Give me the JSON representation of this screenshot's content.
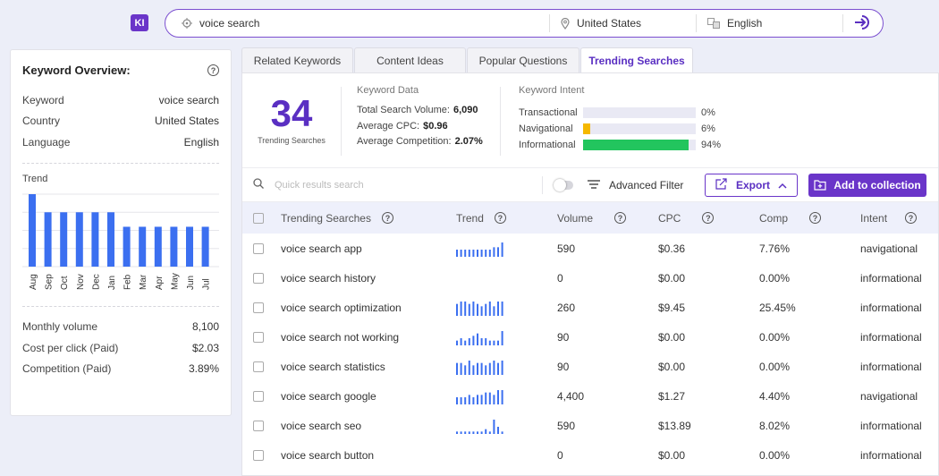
{
  "app": {
    "logo_text": "KI"
  },
  "search": {
    "keyword": "voice search",
    "country": "United States",
    "language": "English",
    "icons": {
      "keyword": "target-icon",
      "country": "location-pin-icon",
      "language": "translate-icon",
      "go": "login-arrow-icon"
    }
  },
  "overview": {
    "title": "Keyword Overview:",
    "rows": [
      {
        "label": "Keyword",
        "value": "voice search"
      },
      {
        "label": "Country",
        "value": "United States"
      },
      {
        "label": "Language",
        "value": "English"
      }
    ],
    "trend_title": "Trend",
    "trend": {
      "months": [
        "Aug",
        "Sep",
        "Oct",
        "Nov",
        "Dec",
        "Jan",
        "Feb",
        "Mar",
        "Apr",
        "May",
        "Jun",
        "Jul"
      ],
      "values": [
        1.0,
        0.75,
        0.75,
        0.75,
        0.75,
        0.75,
        0.55,
        0.55,
        0.55,
        0.55,
        0.55,
        0.55
      ],
      "bar_color": "#3b6ff0"
    },
    "stats": [
      {
        "label": "Monthly volume",
        "value": "8,100"
      },
      {
        "label": "Cost per click (Paid)",
        "value": "$2.03"
      },
      {
        "label": "Competition (Paid)",
        "value": "3.89%"
      }
    ]
  },
  "tabs": [
    {
      "label": "Related Keywords",
      "active": false
    },
    {
      "label": "Content Ideas",
      "active": false
    },
    {
      "label": "Popular Questions",
      "active": false
    },
    {
      "label": "Trending Searches",
      "active": true
    }
  ],
  "summary": {
    "count": "34",
    "count_label": "Trending Searches",
    "keyword_data": {
      "title": "Keyword Data",
      "rows": [
        {
          "label": "Total Search Volume:",
          "value": "6,090"
        },
        {
          "label": "Average CPC:",
          "value": "$0.96"
        },
        {
          "label": "Average Competition:",
          "value": "2.07%"
        }
      ]
    },
    "keyword_intent": {
      "title": "Keyword Intent",
      "rows": [
        {
          "label": "Transactional",
          "value": "0%",
          "fraction": 0.0,
          "color": "#b0b0ff"
        },
        {
          "label": "Navigational",
          "value": "6%",
          "fraction": 0.06,
          "color": "#f5b800"
        },
        {
          "label": "Informational",
          "value": "94%",
          "fraction": 0.94,
          "color": "#22c55e"
        }
      ]
    }
  },
  "toolbar": {
    "search_placeholder": "Quick results search",
    "advanced_filter": "Advanced Filter",
    "export": "Export",
    "add_to_collection": "Add to collection"
  },
  "table": {
    "headers": [
      "Trending Searches",
      "Trend",
      "Volume",
      "CPC",
      "Comp",
      "Intent"
    ],
    "rows": [
      {
        "keyword": "voice search app",
        "trend": [
          3,
          3,
          3,
          3,
          3,
          3,
          3,
          3,
          3,
          4,
          4,
          6
        ],
        "volume": "590",
        "cpc": "$0.36",
        "comp": "7.76%",
        "intent": "navigational"
      },
      {
        "keyword": "voice search history",
        "trend": [],
        "volume": "0",
        "cpc": "$0.00",
        "comp": "0.00%",
        "intent": "informational"
      },
      {
        "keyword": "voice search optimization",
        "trend": [
          5,
          6,
          6,
          5,
          6,
          5,
          4,
          5,
          6,
          4,
          6,
          6
        ],
        "volume": "260",
        "cpc": "$9.45",
        "comp": "25.45%",
        "intent": "informational"
      },
      {
        "keyword": "voice search not working",
        "trend": [
          2,
          3,
          2,
          3,
          4,
          5,
          3,
          3,
          2,
          2,
          2,
          6
        ],
        "volume": "90",
        "cpc": "$0.00",
        "comp": "0.00%",
        "intent": "informational"
      },
      {
        "keyword": "voice search statistics",
        "trend": [
          5,
          5,
          4,
          6,
          4,
          5,
          5,
          4,
          5,
          6,
          5,
          6
        ],
        "volume": "90",
        "cpc": "$0.00",
        "comp": "0.00%",
        "intent": "informational"
      },
      {
        "keyword": "voice search google",
        "trend": [
          3,
          3,
          3,
          4,
          3,
          4,
          4,
          5,
          5,
          4,
          6,
          6
        ],
        "volume": "4,400",
        "cpc": "$1.27",
        "comp": "4.40%",
        "intent": "navigational"
      },
      {
        "keyword": "voice search seo",
        "trend": [
          1,
          1,
          1,
          1,
          1,
          1,
          1,
          2,
          1,
          6,
          3,
          1
        ],
        "volume": "590",
        "cpc": "$13.89",
        "comp": "8.02%",
        "intent": "informational"
      },
      {
        "keyword": "voice search button",
        "trend": [],
        "volume": "0",
        "cpc": "$0.00",
        "comp": "0.00%",
        "intent": "informational"
      }
    ],
    "spark_color": "#3b6ff0"
  }
}
